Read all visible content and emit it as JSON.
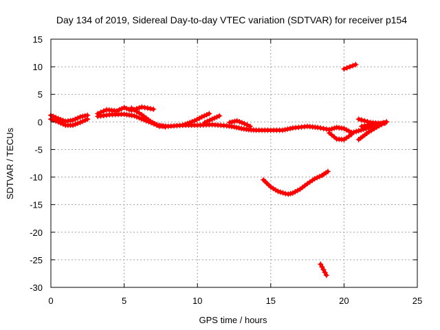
{
  "chart_data": {
    "type": "scatter",
    "title": "Day 134 of 2019, Sidereal Day-to-day VTEC variation (SDTVAR) for receiver p154",
    "xlabel": "GPS time / hours",
    "ylabel": "SDTVAR / TECUs",
    "xlim": [
      0,
      25
    ],
    "ylim": [
      -30,
      15
    ],
    "x_ticks": [
      0,
      5,
      10,
      15,
      20,
      25
    ],
    "x_tick_labels": [
      "0",
      "5",
      "10",
      "15",
      "20",
      "25"
    ],
    "y_ticks": [
      15,
      10,
      5,
      0,
      -5,
      -10,
      -15,
      -20,
      -25,
      -30
    ],
    "y_tick_labels": [
      "15",
      "10",
      "5",
      "0",
      "-5",
      "-10",
      "-15",
      "-20",
      "-25",
      "-30"
    ],
    "grid": true,
    "marker": "+",
    "color": "#ff0000",
    "series": [
      {
        "name": "band-early-upper",
        "x": [
          0,
          0.5,
          1,
          1.5,
          2,
          2.5
        ],
        "y": [
          1.2,
          0.6,
          0.1,
          0.3,
          0.9,
          1.2
        ]
      },
      {
        "name": "band-early-lower",
        "x": [
          0,
          0.5,
          1,
          1.5,
          2,
          2.5
        ],
        "y": [
          0.5,
          0.0,
          -0.6,
          -0.6,
          -0.1,
          0.5
        ]
      },
      {
        "name": "hump",
        "x": [
          3.2,
          3.8,
          4.5,
          5,
          5.5,
          6.2,
          7
        ],
        "y": [
          1.5,
          2.2,
          2.0,
          2.6,
          2.1,
          2.7,
          2.3
        ]
      },
      {
        "name": "hump-lower",
        "x": [
          3.2,
          4,
          5,
          5.7,
          6.5,
          7.2,
          7.8
        ],
        "y": [
          1.0,
          1.3,
          1.4,
          1.1,
          0.2,
          -0.5,
          -0.9
        ]
      },
      {
        "name": "hump-descent",
        "x": [
          5.5,
          6.2,
          6.8,
          7.4
        ],
        "y": [
          2.5,
          1.3,
          0.1,
          -0.8
        ]
      },
      {
        "name": "main-track",
        "x": [
          7.5,
          8,
          9,
          10,
          11,
          12,
          12.5,
          13,
          13.5,
          14,
          15,
          15.8,
          16.5,
          17.5,
          18.2,
          19
        ],
        "y": [
          -0.7,
          -0.8,
          -0.6,
          -0.6,
          -0.5,
          -0.7,
          -0.9,
          -1.2,
          -1.4,
          -1.5,
          -1.5,
          -1.5,
          -1.1,
          -0.8,
          -1.0,
          -1.4
        ]
      },
      {
        "name": "branch-9-11",
        "x": [
          9,
          9.8,
          10.3,
          10.8
        ],
        "y": [
          -0.6,
          0.2,
          0.9,
          1.5
        ]
      },
      {
        "name": "branch-10-11",
        "x": [
          10.5,
          11,
          11.5
        ],
        "y": [
          -0.1,
          0.5,
          1.1
        ]
      },
      {
        "name": "cluster-12-13",
        "x": [
          12.2,
          12.7,
          13.2,
          13.6
        ],
        "y": [
          -0.1,
          0.2,
          -0.3,
          -0.8
        ]
      },
      {
        "name": "loop-upper",
        "x": [
          19,
          19.5,
          20,
          20.5
        ],
        "y": [
          -1.4,
          -1.0,
          -1.2,
          -1.9
        ]
      },
      {
        "name": "loop-lower",
        "x": [
          19,
          19.5,
          20,
          20.5
        ],
        "y": [
          -2.0,
          -3.1,
          -3.2,
          -2.3
        ]
      },
      {
        "name": "late-fan-a",
        "x": [
          20.5,
          21.5,
          22.5,
          22.9
        ],
        "y": [
          -2.0,
          -1.2,
          -0.3,
          0.0
        ]
      },
      {
        "name": "late-fan-b",
        "x": [
          21,
          21.7,
          22.4,
          22.9
        ],
        "y": [
          -3.2,
          -1.8,
          -0.7,
          0.0
        ]
      },
      {
        "name": "late-fan-c",
        "x": [
          21,
          21.8,
          22.5,
          22.9
        ],
        "y": [
          0.5,
          -0.1,
          -0.3,
          0.0
        ]
      },
      {
        "name": "late-fan-d",
        "x": [
          21.2,
          22,
          22.8
        ],
        "y": [
          -0.8,
          -0.4,
          -0.2
        ]
      },
      {
        "name": "upper-segment",
        "x": [
          20.0,
          20.4,
          20.8
        ],
        "y": [
          9.6,
          10.0,
          10.4
        ]
      },
      {
        "name": "dip-arc",
        "x": [
          14.5,
          15,
          15.5,
          16,
          16.2,
          16.5,
          17,
          17.5,
          18,
          18.5,
          18.9
        ],
        "y": [
          -10.5,
          -11.8,
          -12.6,
          -13.0,
          -13.1,
          -12.9,
          -12.2,
          -11.2,
          -10.3,
          -9.7,
          -9.0
        ]
      },
      {
        "name": "low-segment",
        "x": [
          18.4,
          18.6,
          18.8
        ],
        "y": [
          -25.8,
          -26.8,
          -27.8
        ]
      }
    ]
  }
}
